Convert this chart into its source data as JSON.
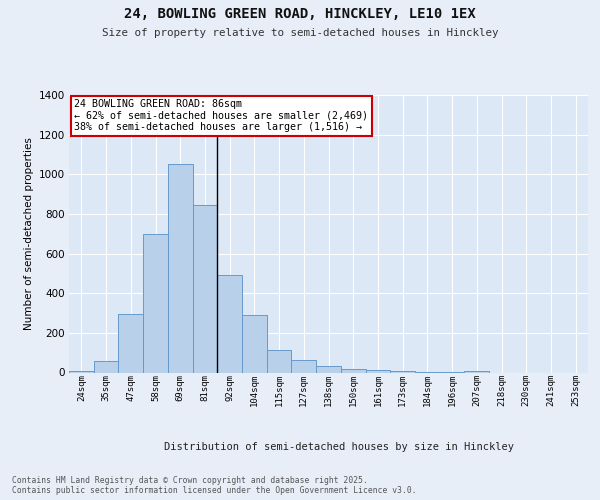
{
  "title_line1": "24, BOWLING GREEN ROAD, HINCKLEY, LE10 1EX",
  "title_line2": "Size of property relative to semi-detached houses in Hinckley",
  "xlabel": "Distribution of semi-detached houses by size in Hinckley",
  "ylabel": "Number of semi-detached properties",
  "footnote": "Contains HM Land Registry data © Crown copyright and database right 2025.\nContains public sector information licensed under the Open Government Licence v3.0.",
  "bar_labels": [
    "24sqm",
    "35sqm",
    "47sqm",
    "58sqm",
    "69sqm",
    "81sqm",
    "92sqm",
    "104sqm",
    "115sqm",
    "127sqm",
    "138sqm",
    "150sqm",
    "161sqm",
    "173sqm",
    "184sqm",
    "196sqm",
    "207sqm",
    "218sqm",
    "230sqm",
    "241sqm",
    "253sqm"
  ],
  "bar_values": [
    10,
    60,
    295,
    700,
    1050,
    845,
    490,
    290,
    115,
    65,
    35,
    20,
    15,
    10,
    5,
    5,
    10,
    0,
    0,
    0,
    0
  ],
  "bar_color": "#b8d0ea",
  "bar_edge_color": "#6699cc",
  "annotation_box_text": "24 BOWLING GREEN ROAD: 86sqm\n← 62% of semi-detached houses are smaller (2,469)\n38% of semi-detached houses are larger (1,516) →",
  "vline_bar_index": 5,
  "vline_color": "#000000",
  "bg_color": "#e8eef8",
  "plot_bg_color": "#dce8f5",
  "ylim": [
    0,
    1400
  ],
  "yticks": [
    0,
    200,
    400,
    600,
    800,
    1000,
    1200,
    1400
  ],
  "grid_color": "#ffffff",
  "annotation_box_color": "#ffffff",
  "annotation_box_edge_color": "#cc0000"
}
